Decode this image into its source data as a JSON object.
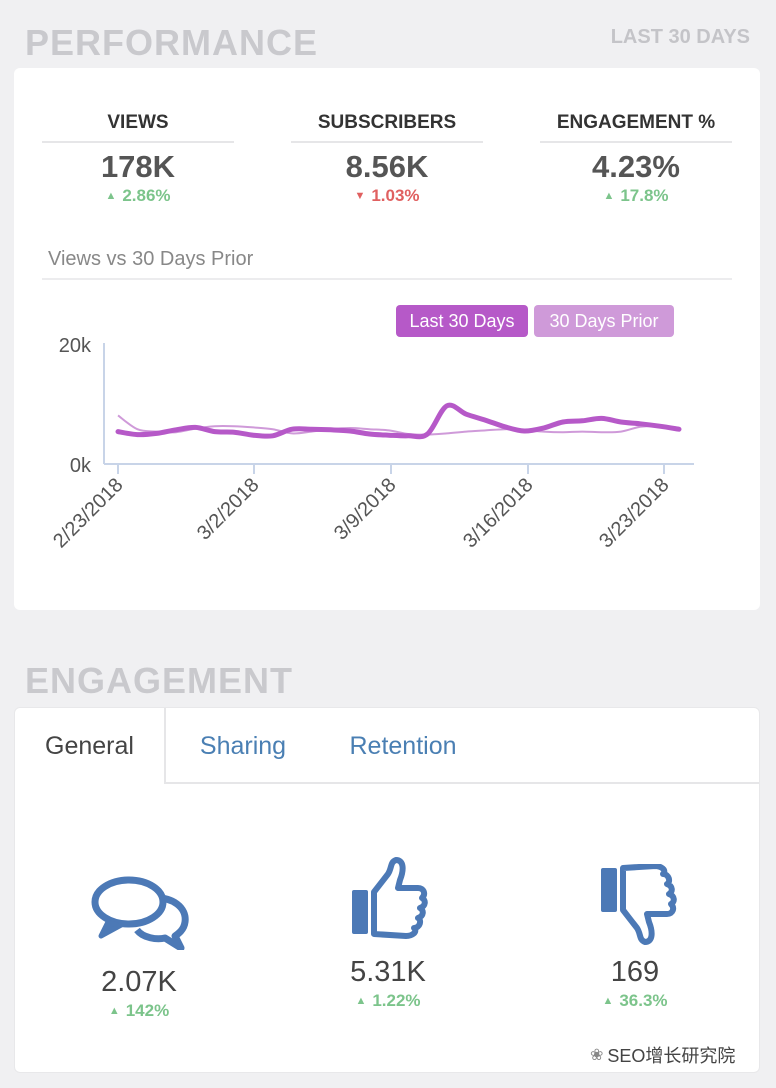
{
  "performance": {
    "title": "PERFORMANCE",
    "period": "LAST 30 DAYS",
    "metrics": [
      {
        "label": "VIEWS",
        "value": "178K",
        "delta": "2.86%",
        "direction": "up"
      },
      {
        "label": "SUBSCRIBERS",
        "value": "8.56K",
        "delta": "1.03%",
        "direction": "down"
      },
      {
        "label": "ENGAGEMENT %",
        "value": "4.23%",
        "delta": "17.8%",
        "direction": "up"
      }
    ],
    "chart_title": "Views vs 30 Days Prior"
  },
  "chart_data": {
    "type": "line",
    "title": "Views vs 30 Days Prior",
    "y_ticks": [
      "20k",
      "0k"
    ],
    "ylim": [
      0,
      20000
    ],
    "x_tick_labels": [
      "2/23/2018",
      "3/2/2018",
      "3/9/2018",
      "3/16/2018",
      "3/23/2018"
    ],
    "legend": [
      "Last 30 Days",
      "30 Days Prior"
    ],
    "colors": {
      "last": "#b659c8",
      "prior": "#cf9ad9"
    },
    "series": [
      {
        "name": "Last 30 Days",
        "values": [
          5400,
          4900,
          5100,
          5700,
          6100,
          5400,
          5300,
          4800,
          4700,
          5800,
          5800,
          5700,
          5500,
          5000,
          4800,
          4700,
          5000,
          9700,
          8300,
          7300,
          6200,
          5500,
          6000,
          7000,
          7200,
          7600,
          7000,
          6700,
          6300,
          5800
        ]
      },
      {
        "name": "30 Days Prior",
        "values": [
          8100,
          5800,
          5400,
          5300,
          5900,
          6300,
          6300,
          6100,
          5800,
          5100,
          5400,
          5800,
          6000,
          5800,
          5600,
          5000,
          4900,
          5100,
          5400,
          5600,
          5800,
          5700,
          5400,
          5300,
          5400,
          5300,
          5400,
          6200,
          6300,
          5800
        ]
      }
    ]
  },
  "engagement": {
    "title": "ENGAGEMENT",
    "tabs": [
      "General",
      "Sharing",
      "Retention"
    ],
    "items": [
      {
        "icon": "comments-icon",
        "value": "2.07K",
        "delta": "142%"
      },
      {
        "icon": "thumbs-up-icon",
        "value": "5.31K",
        "delta": "1.22%"
      },
      {
        "icon": "thumbs-down-icon",
        "value": "169",
        "delta": "36.3%"
      }
    ],
    "icon_color": "#4c79b6"
  },
  "watermark": "SEO增长研究院"
}
